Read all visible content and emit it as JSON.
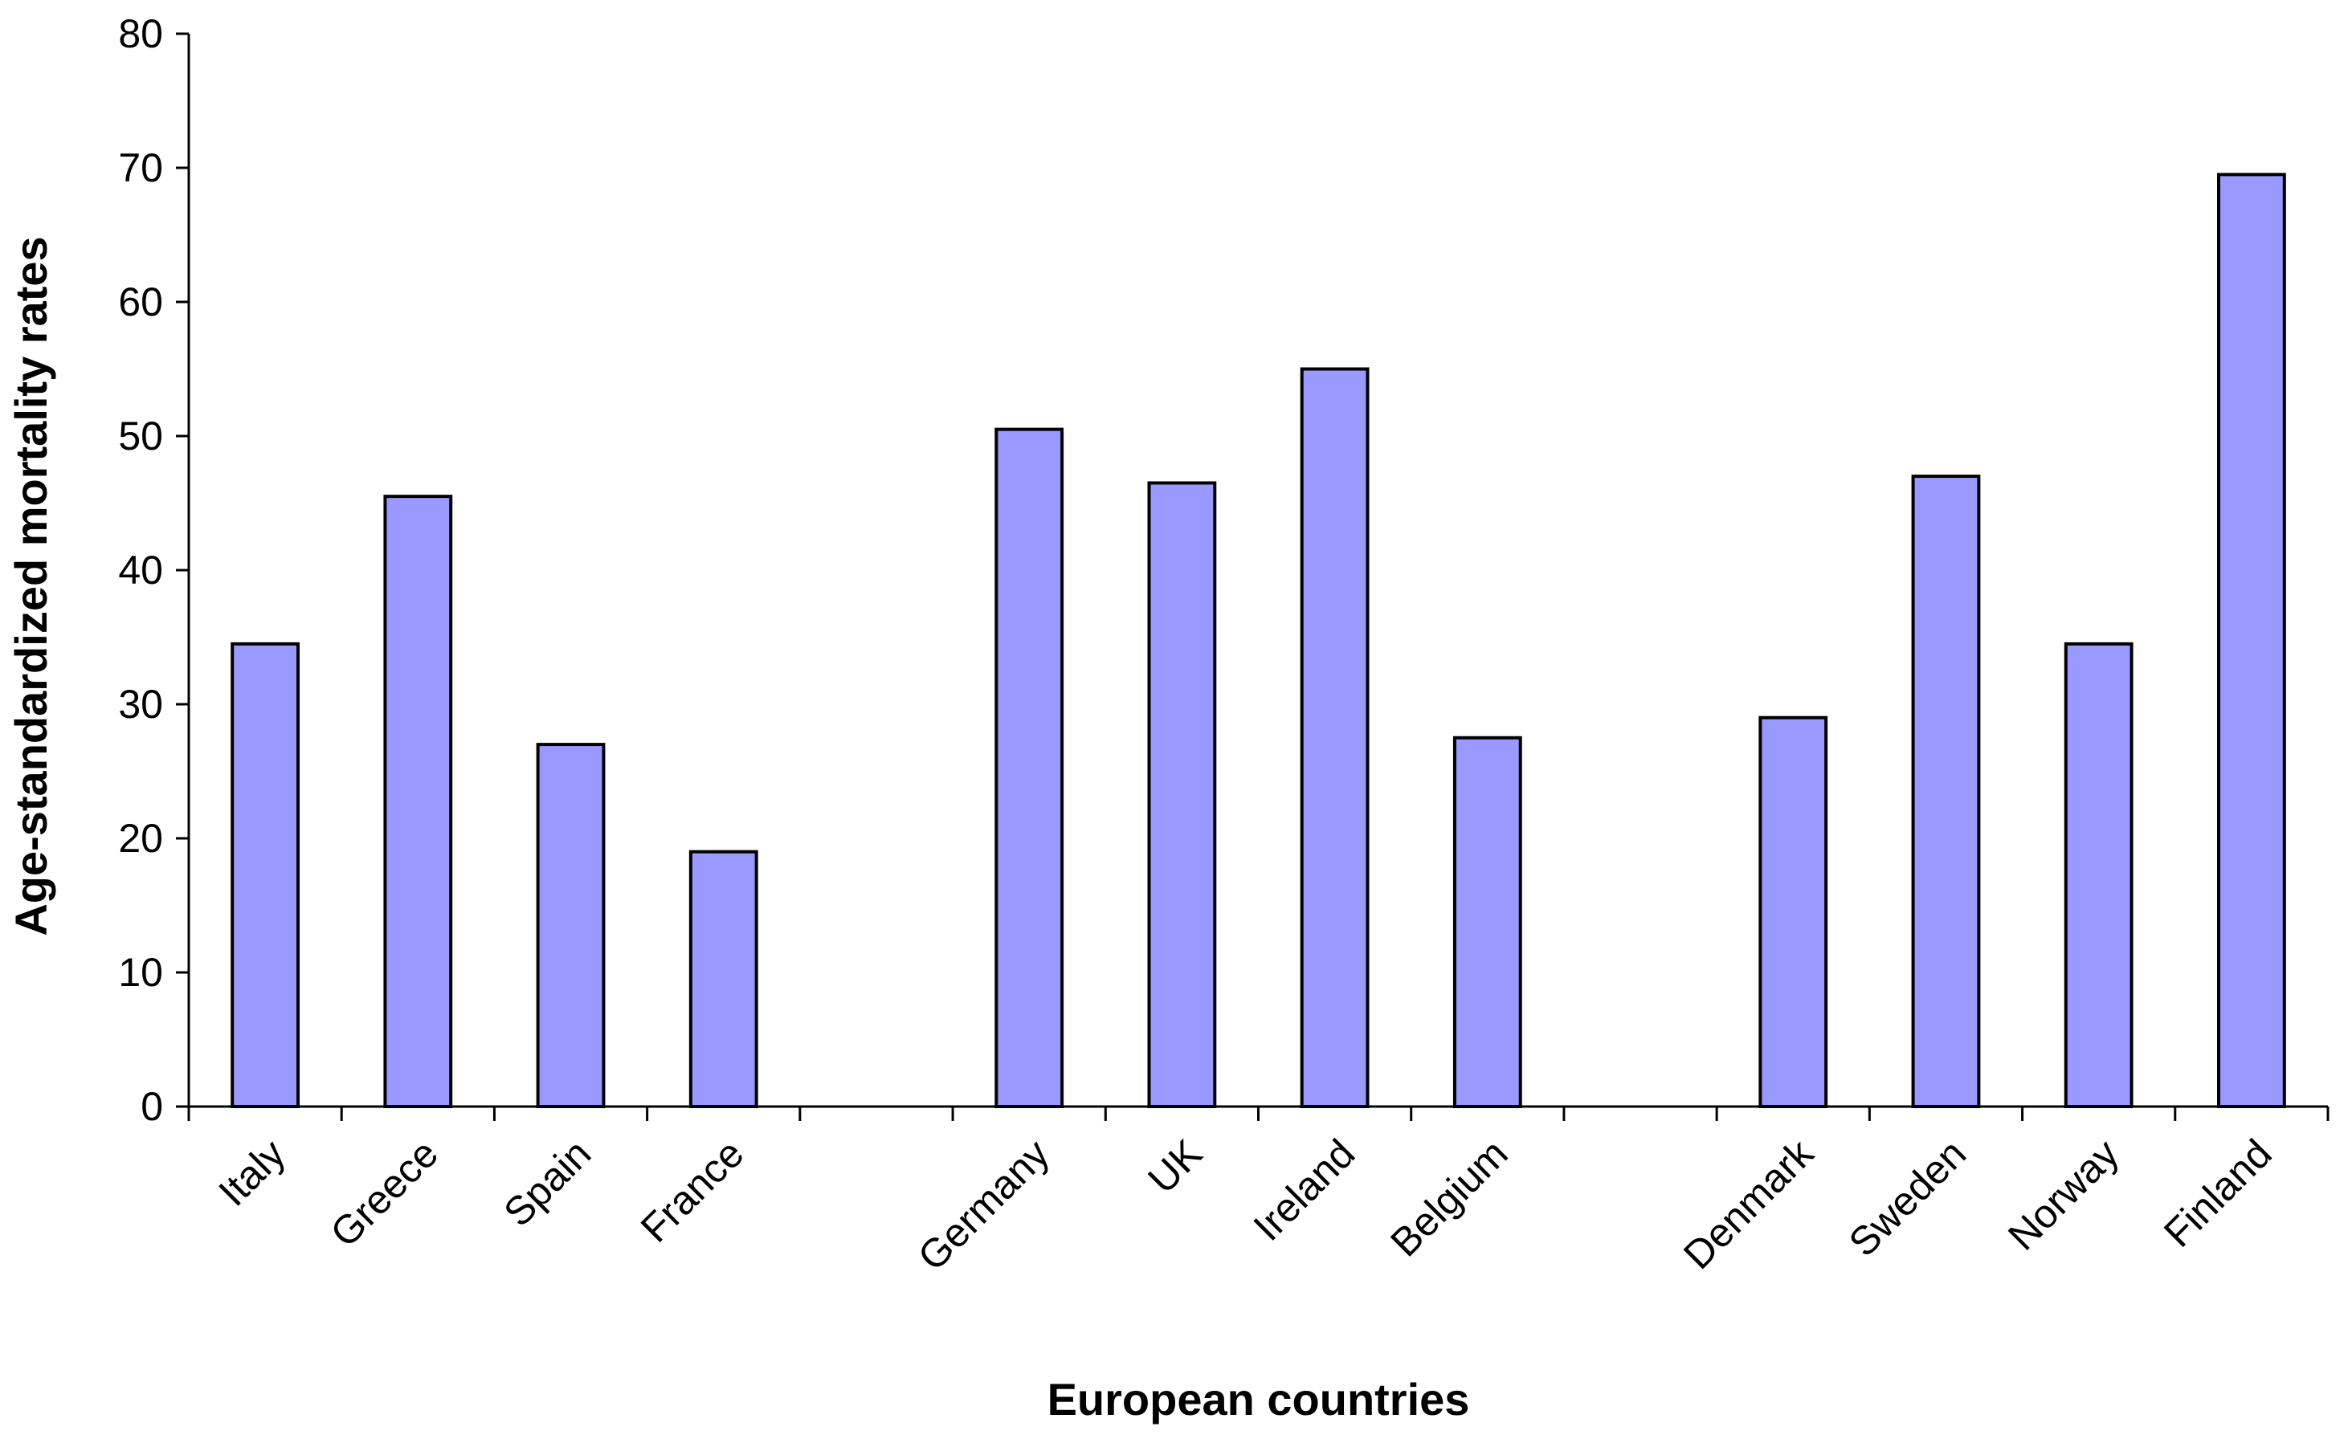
{
  "chart_data": {
    "type": "bar",
    "title": "",
    "xlabel": "European countries",
    "ylabel": "Age-standardized mortality rates",
    "ylim": [
      0,
      80
    ],
    "yticks": [
      0,
      10,
      20,
      30,
      40,
      50,
      60,
      70,
      80
    ],
    "grid": false,
    "legend": "none",
    "bar_color": "#9999ff",
    "bar_edge_color": "#000000",
    "categories": [
      "Italy",
      "Greece",
      "Spain",
      "France",
      "",
      "Germany",
      "UK",
      "Ireland",
      "Belgium",
      "",
      "Denmark",
      "Sweden",
      "Norway",
      "Finland"
    ],
    "values": [
      34.5,
      45.5,
      27.0,
      19.0,
      null,
      50.5,
      46.5,
      55.0,
      27.5,
      null,
      29.0,
      47.0,
      34.5,
      69.5
    ]
  }
}
